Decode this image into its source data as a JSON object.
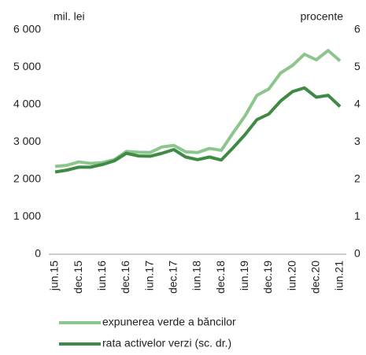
{
  "chart_data": {
    "type": "line",
    "y_label": "mil. lei",
    "y2_label": "procente",
    "categories": [
      "jun.15",
      null,
      "dec.15",
      null,
      "iun.16",
      null,
      "dec.16",
      null,
      "iun.17",
      null,
      "dec.17",
      null,
      "iun.18",
      null,
      "dec.18",
      null,
      "iun.19",
      null,
      "dec.19",
      null,
      "iun.20",
      null,
      "dec.20",
      null,
      "iun.21"
    ],
    "series": [
      {
        "name": "expunerea verde a băncilor",
        "color": "#8cc68e",
        "values": [
          2350,
          2380,
          2470,
          2430,
          2450,
          2530,
          2750,
          2730,
          2720,
          2870,
          2910,
          2740,
          2720,
          2830,
          2780,
          3250,
          3700,
          4250,
          4420,
          4850,
          5050,
          5350,
          5200,
          5450,
          5170
        ]
      },
      {
        "name": "rata activelor verzi (sc. dr.)",
        "color": "#3f8b46",
        "axis": "y2",
        "values": [
          2.2,
          2.25,
          2.33,
          2.33,
          2.4,
          2.5,
          2.7,
          2.63,
          2.62,
          2.7,
          2.8,
          2.6,
          2.53,
          2.6,
          2.52,
          2.85,
          3.2,
          3.6,
          3.75,
          4.1,
          4.35,
          4.45,
          4.2,
          4.25,
          3.95
        ]
      }
    ],
    "ylim": [
      0,
      6000
    ],
    "yticks": [
      0,
      {
        "value": 1000,
        "label": "1 000"
      },
      {
        "value": 2000,
        "label": "2 000"
      },
      {
        "value": 3000,
        "label": "3 000"
      },
      {
        "value": 4000,
        "label": "4 000"
      },
      {
        "value": 5000,
        "label": "5 000"
      },
      {
        "value": 6000,
        "label": "6 000"
      }
    ],
    "y2lim": [
      0,
      6
    ],
    "y2ticks": [
      0,
      1,
      2,
      3,
      4,
      5,
      6
    ],
    "grid": false,
    "legend": "bottom"
  }
}
